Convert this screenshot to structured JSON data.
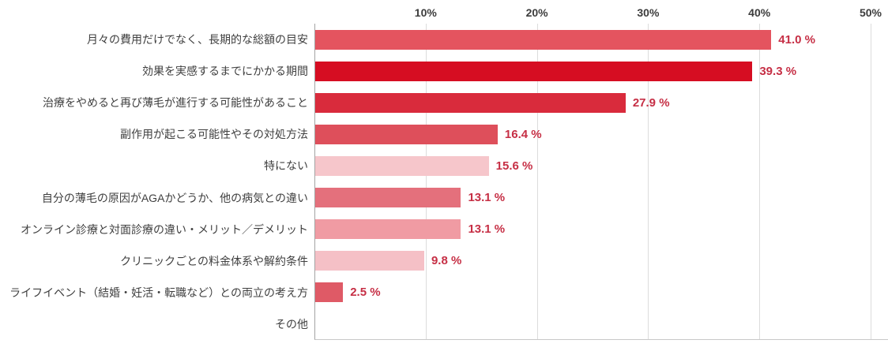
{
  "chart_data": {
    "type": "bar",
    "orientation": "horizontal",
    "title": "",
    "xlabel": "",
    "ylabel": "",
    "xlim": [
      0,
      50
    ],
    "grid": true,
    "legend": false,
    "categories": [
      "月々の費用だけでなく、長期的な総額の目安",
      "効果を実感するまでにかかる期間",
      "治療をやめると再び薄毛が進行する可能性があること",
      "副作用が起こる可能性やその対処方法",
      "特にない",
      "自分の薄毛の原因がAGAかどうか、他の病気との違い",
      "オンライン診療と対面診療の違い・メリット／デメリット",
      "クリニックごとの料金体系や解約条件",
      "ライフイベント（結婚・妊活・転職など）との両立の考え方",
      "その他"
    ],
    "values": [
      41.0,
      39.3,
      27.9,
      16.4,
      15.6,
      13.1,
      13.1,
      9.8,
      2.5,
      0
    ],
    "value_labels": [
      "41.0 %",
      "39.3 %",
      "27.9 %",
      "16.4 %",
      "15.6 %",
      "13.1 %",
      "13.1 %",
      "9.8 %",
      "2.5 %",
      ""
    ],
    "bar_colors": [
      "#e4545f",
      "#d60d22",
      "#d92b3c",
      "#de4f5b",
      "#f6c6cb",
      "#e4707c",
      "#f09ba3",
      "#f5c0c6",
      "#df5a66",
      "#ffffff"
    ],
    "x_ticks": [
      "10%",
      "20%",
      "30%",
      "40%",
      "50%"
    ],
    "x_tick_values": [
      10,
      20,
      30,
      40,
      50
    ],
    "value_label_color": "#c62f45"
  },
  "colors": {
    "gridline": "#dcdcdc",
    "axis_line": "#a3a3a3",
    "baseline": "#c9c9c9",
    "category_text": "#3f3f3f",
    "tick_text": "#3c3c3c"
  }
}
